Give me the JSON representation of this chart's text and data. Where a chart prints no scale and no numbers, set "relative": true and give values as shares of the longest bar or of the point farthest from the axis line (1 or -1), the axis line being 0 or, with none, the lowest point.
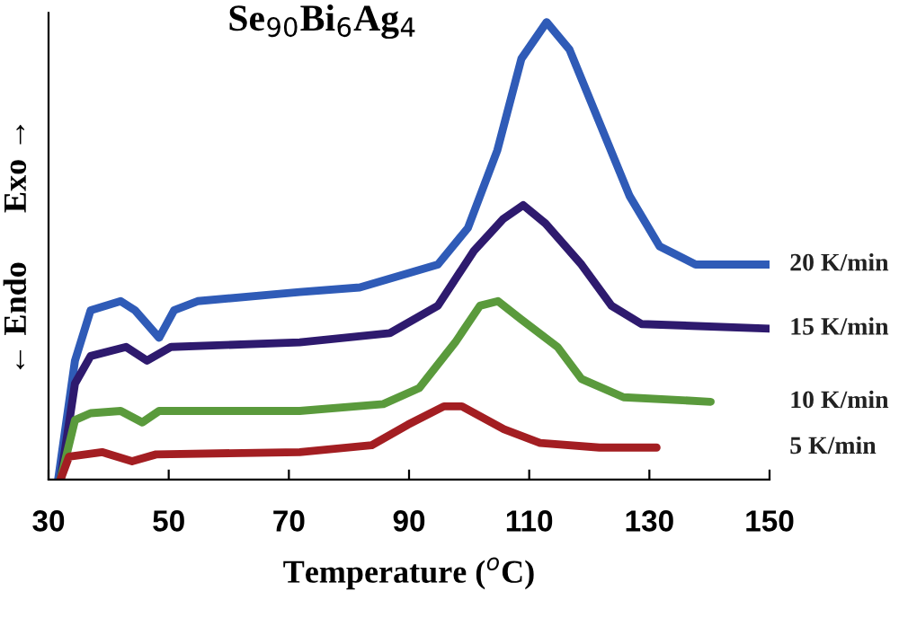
{
  "chart_data": {
    "type": "line",
    "title": "Se$_{90}$Bi$_{6}$Ag$_{4}$",
    "xlabel": "Temperature ($^{o}$C)",
    "ylabel": "← Endo      Exo →",
    "relative": true,
    "xlim": [
      30,
      150
    ],
    "xticks": [
      30,
      50,
      70,
      90,
      110,
      130,
      150
    ],
    "grid": false,
    "legend": false,
    "marker": "none",
    "line_style": "solid",
    "series": [
      {
        "name": "20 K/min",
        "color": "#2f5bb7",
        "x": [
          31.6,
          34.4,
          37,
          42,
          44.4,
          48.4,
          50.9,
          54.8,
          71.8,
          81.8,
          94.8,
          99.8,
          104.7,
          108.7,
          112.9,
          116.7,
          121.7,
          126.7,
          131.7,
          137.7,
          150
        ],
        "values": [
          0,
          0.26,
          0.37,
          0.39,
          0.37,
          0.31,
          0.37,
          0.39,
          0.41,
          0.42,
          0.47,
          0.55,
          0.72,
          0.92,
          1.0,
          0.94,
          0.78,
          0.62,
          0.51,
          0.47,
          0.47
        ]
      },
      {
        "name": "15 K/min",
        "color": "#2e1a6e",
        "x": [
          32,
          34.4,
          37,
          42.9,
          46.4,
          50.4,
          71.8,
          86.8,
          94.8,
          100.8,
          105.7,
          109,
          112.7,
          118.7,
          123.7,
          128.7,
          150
        ],
        "values": [
          0,
          0.21,
          0.27,
          0.29,
          0.26,
          0.29,
          0.3,
          0.32,
          0.38,
          0.5,
          0.57,
          0.6,
          0.56,
          0.47,
          0.38,
          0.34,
          0.33
        ]
      },
      {
        "name": "10 K/min",
        "color": "#5a9a3c",
        "x": [
          32,
          34.4,
          37,
          42,
          45.6,
          48.4,
          71.8,
          85.7,
          91.7,
          97.7,
          101.8,
          104.8,
          108.7,
          114.7,
          118.7,
          125.7,
          140.2
        ],
        "values": [
          0,
          0.13,
          0.145,
          0.15,
          0.125,
          0.15,
          0.15,
          0.165,
          0.2,
          0.3,
          0.38,
          0.39,
          0.35,
          0.29,
          0.22,
          0.18,
          0.17
        ]
      },
      {
        "name": "5 K/min",
        "color": "#a31e22",
        "x": [
          32,
          33.4,
          38.9,
          43.9,
          47.9,
          71.8,
          83.8,
          89.8,
          95.8,
          98.8,
          105.8,
          111.8,
          121.7,
          131.2
        ],
        "values": [
          0,
          0.05,
          0.06,
          0.04,
          0.055,
          0.06,
          0.075,
          0.12,
          0.16,
          0.16,
          0.11,
          0.08,
          0.07,
          0.07
        ]
      }
    ]
  }
}
